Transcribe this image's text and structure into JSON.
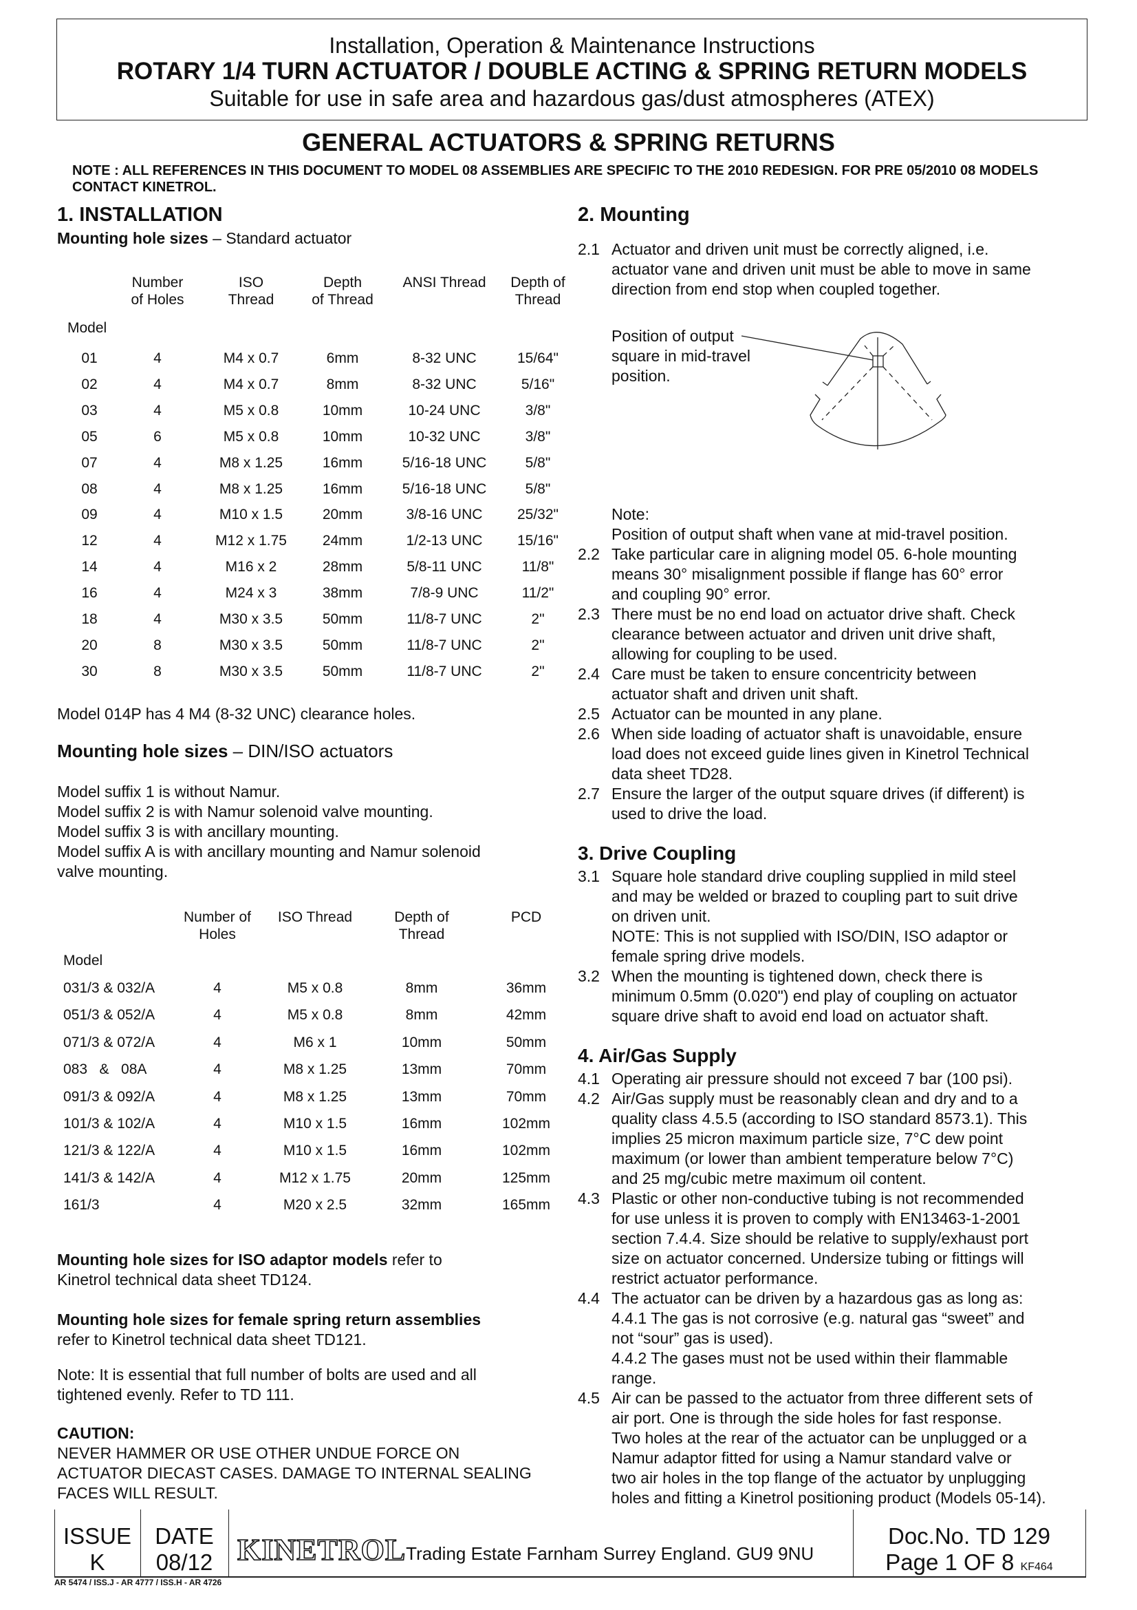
{
  "header": {
    "line1": "Installation, Operation & Maintenance Instructions",
    "line2": "ROTARY 1/4 TURN ACTUATOR / DOUBLE ACTING & SPRING RETURN MODELS",
    "line3": "Suitable for use in safe area and hazardous gas/dust atmospheres (ATEX)"
  },
  "title": "GENERAL ACTUATORS & SPRING RETURNS",
  "note": "NOTE : ALL REFERENCES IN THIS DOCUMENT TO MODEL 08 ASSEMBLIES ARE SPECIFIC TO THE 2010 REDESIGN. FOR PRE 05/2010 08 MODELS CONTACT KINETROL.",
  "left": {
    "heading": "1. INSTALLATION",
    "sub1_bold": "Mounting hole sizes",
    "sub1_rest": " – Standard actuator",
    "table1": {
      "headers": [
        [
          "",
          ""
        ],
        [
          "Number",
          "of Holes"
        ],
        [
          "ISO",
          "Thread"
        ],
        [
          "Depth",
          "of Thread"
        ],
        [
          "ANSI  Thread",
          ""
        ],
        [
          "Depth of",
          "Thread"
        ]
      ],
      "model_label": "Model",
      "rows": [
        [
          "01",
          "4",
          "M4 x 0.7",
          "6mm",
          "8-32 UNC",
          "15/64\""
        ],
        [
          "02",
          "4",
          "M4 x 0.7",
          "8mm",
          "8-32 UNC",
          "5/16\""
        ],
        [
          "03",
          "4",
          "M5 x 0.8",
          "10mm",
          "10-24 UNC",
          "3/8\""
        ],
        [
          "05",
          "6",
          "M5 x 0.8",
          "10mm",
          "10-32 UNC",
          "3/8\""
        ],
        [
          "07",
          "4",
          "M8 x 1.25",
          "16mm",
          "5/16-18 UNC",
          "5/8\""
        ],
        [
          "08",
          "4",
          "M8 x 1.25",
          "16mm",
          "5/16-18 UNC",
          "5/8\""
        ],
        [
          "09",
          "4",
          "M10 x 1.5",
          "20mm",
          "3/8-16 UNC",
          "25/32\""
        ],
        [
          "12",
          "4",
          "M12 x 1.75",
          "24mm",
          "1/2-13 UNC",
          "15/16\""
        ],
        [
          "14",
          "4",
          "M16 x 2",
          "28mm",
          "5/8-11 UNC",
          "11/8\""
        ],
        [
          "16",
          "4",
          "M24 x 3",
          "38mm",
          "7/8-9 UNC",
          "11/2\""
        ],
        [
          "18",
          "4",
          "M30 x 3.5",
          "50mm",
          "11/8-7 UNC",
          "2\""
        ],
        [
          "20",
          "8",
          "M30 x 3.5",
          "50mm",
          "11/8-7 UNC",
          "2\""
        ],
        [
          "30",
          "8",
          "M30 x 3.5",
          "50mm",
          "11/8-7 UNC",
          "2\""
        ]
      ]
    },
    "clearance_note": "Model 014P has 4 M4 (8-32 UNC) clearance holes.",
    "sub2_bold": "Mounting hole sizes",
    "sub2_rest": " – DIN/ISO actuators",
    "suffix_lines": [
      "Model suffix 1 is without Namur.",
      "Model suffix 2 is with Namur solenoid valve mounting.",
      "Model suffix 3 is with ancillary mounting.",
      "Model suffix A is with ancillary mounting and Namur solenoid",
      "valve mounting."
    ],
    "table2": {
      "headers": [
        [
          "Number of",
          "Holes"
        ],
        [
          "ISO Thread",
          ""
        ],
        [
          "Depth of",
          "Thread"
        ],
        [
          "PCD",
          ""
        ]
      ],
      "model_label": "Model",
      "rows": [
        [
          "031/3 & 032/A",
          "4",
          "M5 x 0.8",
          "8mm",
          "36mm"
        ],
        [
          "051/3 & 052/A",
          "4",
          "M5 x 0.8",
          "8mm",
          "42mm"
        ],
        [
          "071/3 & 072/A",
          "4",
          "M6 x 1",
          "10mm",
          "50mm"
        ],
        [
          "083   &   08A",
          "4",
          "M8 x 1.25",
          "13mm",
          "70mm"
        ],
        [
          "091/3 & 092/A",
          "4",
          "M8 x 1.25",
          "13mm",
          "70mm"
        ],
        [
          "101/3 & 102/A",
          "4",
          "M10 x 1.5",
          "16mm",
          "102mm"
        ],
        [
          "121/3 & 122/A",
          "4",
          "M10 x 1.5",
          "16mm",
          "102mm"
        ],
        [
          "141/3 & 142/A",
          "4",
          "M12 x 1.75",
          "20mm",
          "125mm"
        ],
        [
          "161/3",
          "4",
          "M20 x 2.5",
          "32mm",
          "165mm"
        ]
      ]
    },
    "iso_bold": "Mounting hole sizes for ISO adaptor models",
    "iso_rest": " refer to",
    "iso_line2": "Kinetrol technical data sheet TD124.",
    "female_bold": "Mounting hole sizes for female spring return assemblies",
    "female_line2": "refer to Kinetrol technical data sheet TD121.",
    "bolts_lines": [
      "Note: It is essential that full number of bolts are used and all",
      "tightened evenly. Refer to TD 111."
    ],
    "caution_title": "CAUTION:",
    "caution_lines": [
      "NEVER HAMMER OR USE OTHER UNDUE FORCE ON",
      "ACTUATOR DIECAST CASES. DAMAGE TO INTERNAL SEALING",
      "FACES WILL RESULT."
    ]
  },
  "right": {
    "s2_heading": "2.  Mounting",
    "s2_first": [
      {
        "num": "2.1",
        "lines": [
          "Actuator and driven unit must be correctly aligned, i.e.",
          "actuator vane and driven unit must be able to move in same",
          "direction from end stop when coupled together."
        ]
      }
    ],
    "diagram_label": [
      "Position of output",
      "square in mid-travel",
      "position."
    ],
    "s2_rest": [
      {
        "num": "",
        "lines": [
          "Note:",
          "Position of output shaft when vane at mid-travel position."
        ]
      },
      {
        "num": "2.2",
        "lines": [
          "Take particular care in aligning model 05. 6-hole mounting",
          "means 30° misalignment possible if flange has 60° error",
          "and coupling 90° error."
        ]
      },
      {
        "num": "2.3",
        "lines": [
          "There must be no end load on actuator drive shaft. Check",
          "clearance between actuator and driven unit drive shaft,",
          "allowing for coupling to be used."
        ]
      },
      {
        "num": "2.4",
        "lines": [
          "Care must be taken to ensure concentricity between",
          "actuator shaft and driven unit shaft."
        ]
      },
      {
        "num": "2.5",
        "lines": [
          "Actuator can be mounted in any plane."
        ]
      },
      {
        "num": "2.6",
        "lines": [
          "When side loading of actuator shaft is unavoidable, ensure",
          "load does not exceed guide lines given in Kinetrol Technical",
          "data sheet TD28."
        ]
      },
      {
        "num": "2.7",
        "lines": [
          "Ensure the larger of the output square drives (if different) is",
          "used to drive the load."
        ]
      }
    ],
    "s3_heading": "3.  Drive Coupling",
    "s3": [
      {
        "num": "3.1",
        "lines": [
          "Square hole standard drive coupling supplied in mild steel",
          "and may be welded or brazed to coupling part to suit drive",
          "on driven unit.",
          "NOTE: This is not supplied with ISO/DIN, ISO adaptor or",
          "female spring drive models."
        ]
      },
      {
        "num": "3.2",
        "lines": [
          "When the mounting is tightened down, check there is",
          "minimum 0.5mm (0.020\") end play of coupling on actuator",
          "square drive shaft to avoid end load on actuator shaft."
        ]
      }
    ],
    "s4_heading": "4.  Air/Gas Supply",
    "s4": [
      {
        "num": "4.1",
        "lines": [
          "Operating air pressure should not exceed 7 bar (100 psi)."
        ]
      },
      {
        "num": "4.2",
        "lines": [
          "Air/Gas supply must be reasonably clean and dry and to a",
          "quality class 4.5.5 (according to ISO standard 8573.1). This",
          "implies 25 micron maximum particle size, 7°C dew point",
          "maximum (or lower than ambient temperature below 7°C)",
          "and 25 mg/cubic metre maximum oil content."
        ]
      },
      {
        "num": "4.3",
        "lines": [
          "Plastic or other non-conductive tubing is not recommended",
          "for use unless it is proven to comply with EN13463-1-2001",
          "section 7.4.4. Size should be relative to supply/exhaust port",
          "size on actuator concerned. Undersize tubing or fittings will",
          "restrict actuator performance."
        ]
      },
      {
        "num": "4.4",
        "lines": [
          "The actuator can be driven by a hazardous gas as long as:",
          "4.4.1 The gas is not corrosive (e.g. natural gas “sweet” and",
          "not “sour” gas is used).",
          "4.4.2 The gases must not be used within their flammable",
          "range."
        ]
      },
      {
        "num": "4.5",
        "lines": [
          "Air can be passed to the actuator from three different sets of",
          "air port. One is through the side holes for fast response.",
          "Two holes at the rear of the actuator can be unplugged or a",
          "Namur adaptor fitted for using a Namur standard valve or",
          "two air holes in the top flange of the actuator by unplugging",
          "holes and fitting a Kinetrol positioning product (Models 05-14)."
        ]
      }
    ]
  },
  "footer": {
    "issue_label": "ISSUE",
    "issue": "K",
    "date_label": "DATE",
    "date": "08/12",
    "logo": "KINETROL",
    "address": "Trading Estate Farnham Surrey England. GU9 9NU",
    "doc_no": "Doc.No. TD 129",
    "page": "Page 1 OF 8",
    "form": "KF464",
    "revisions": "AR 5474 /  ISS.J - AR 4777 / ISS.H - AR 4726"
  }
}
